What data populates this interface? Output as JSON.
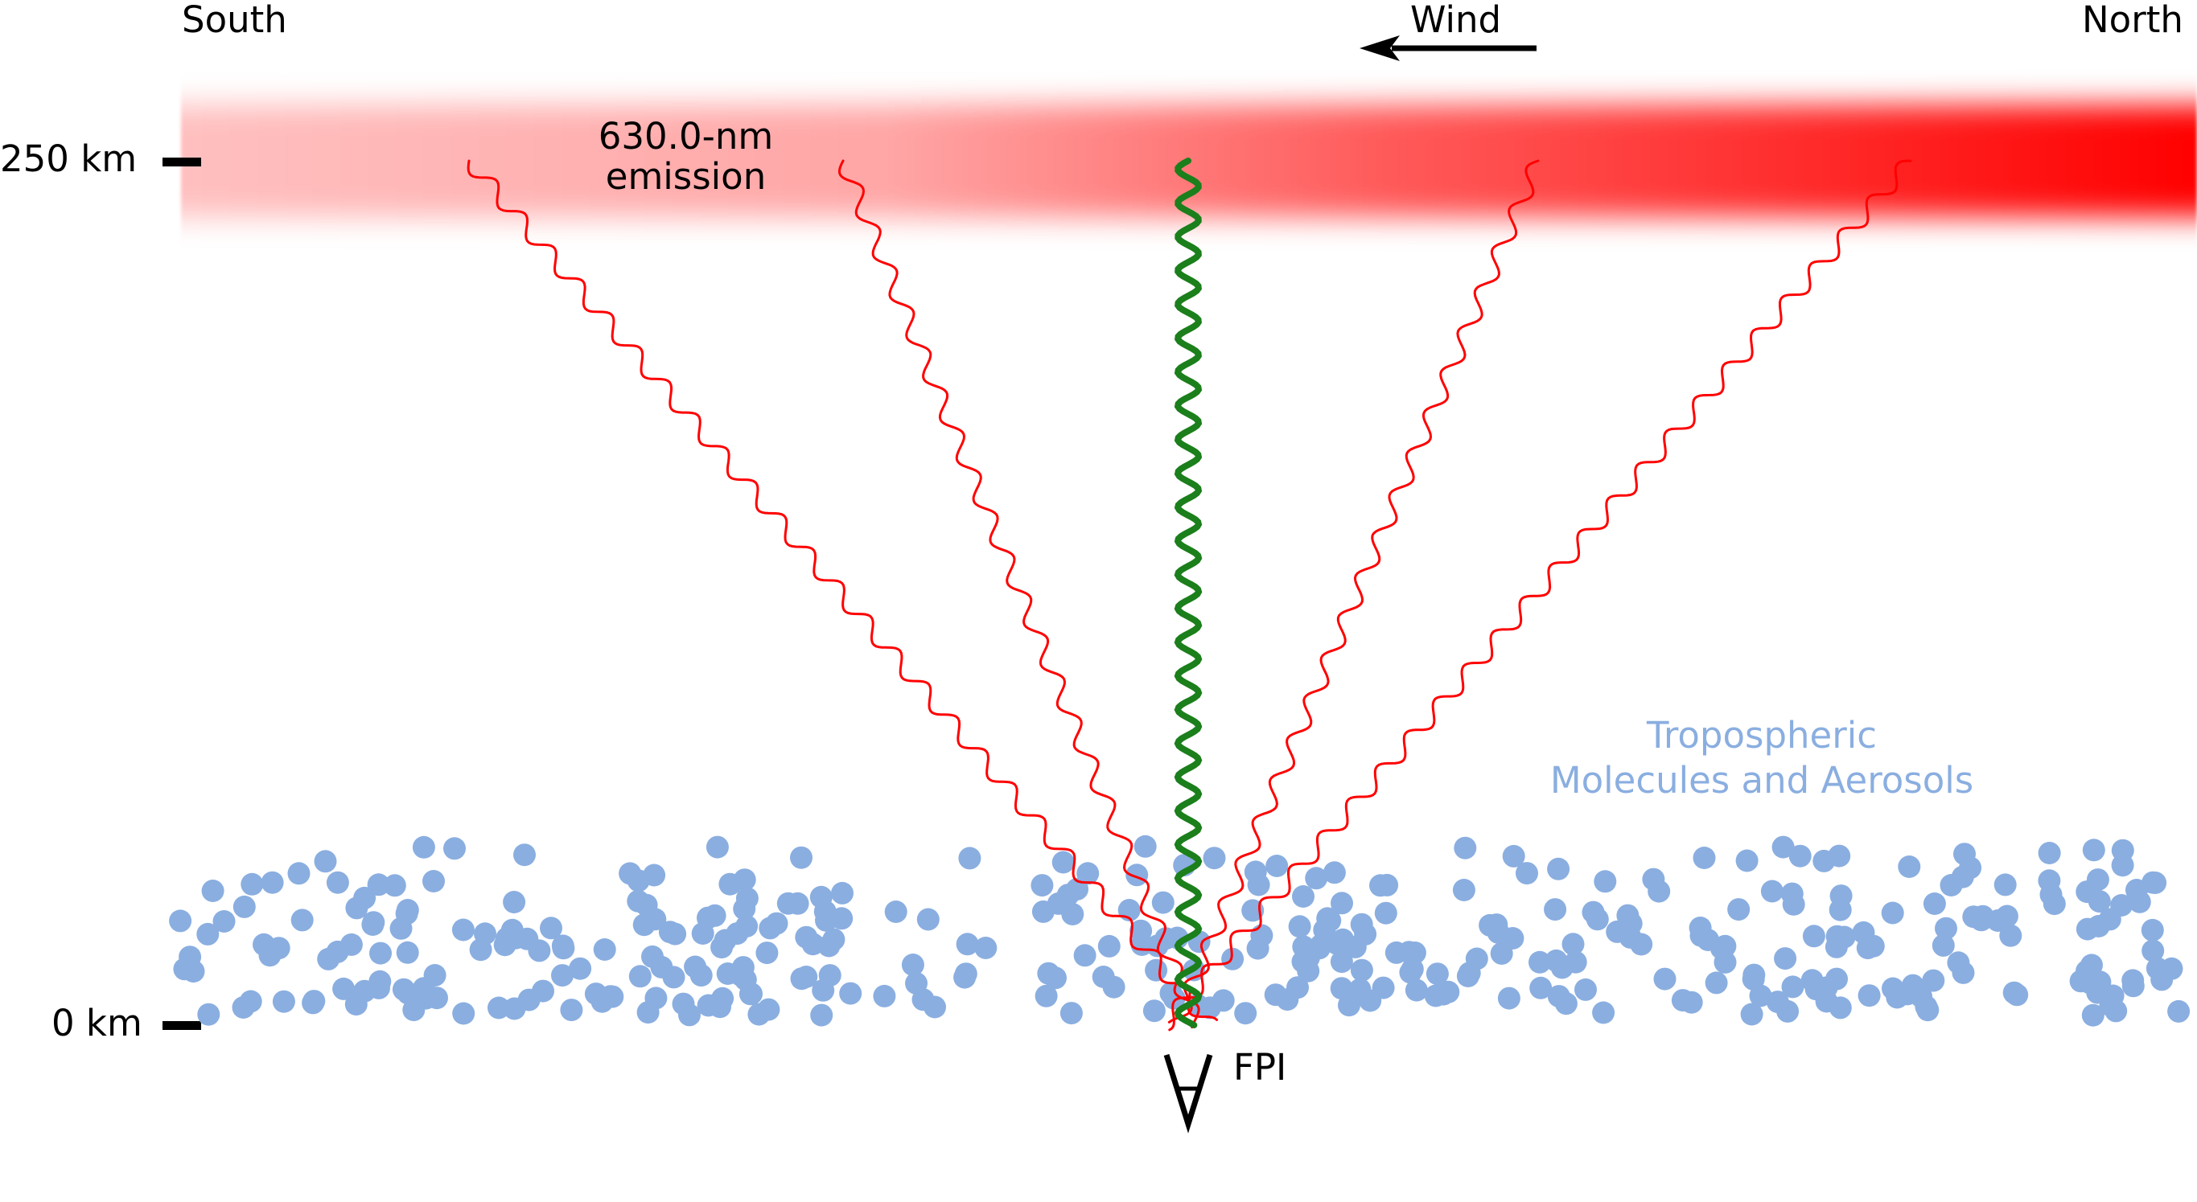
{
  "labels": {
    "south": "South",
    "north": "North",
    "wind": "Wind",
    "alt_250": "250 km",
    "alt_0": "0 km",
    "emission_line1": "630.0-nm",
    "emission_line2": "emission",
    "tropo_line1": "Tropospheric",
    "tropo_line2": "Molecules and Aerosols",
    "instrument": "FPI"
  },
  "colors": {
    "emission_red": "#ff0000",
    "zenith_green": "#1b7f1b",
    "aerosol_blue": "#8aaee0",
    "text": "#000000"
  },
  "icons": {
    "wind_arrow": "arrow-left-icon",
    "fpi": "telescope-icon"
  }
}
